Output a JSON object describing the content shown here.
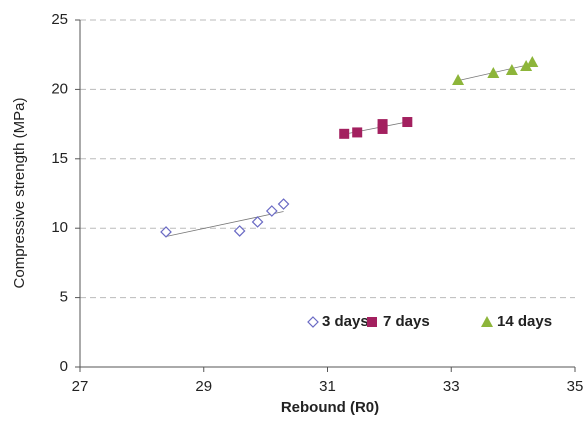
{
  "chart_data": {
    "type": "scatter",
    "x_label": "Rebound (R0)",
    "y_label": "Compressive strength (MPa)",
    "xlim": [
      27,
      35
    ],
    "xticks": [
      27,
      29,
      31,
      33,
      35
    ],
    "ylim": [
      0,
      25
    ],
    "yticks": [
      0,
      5,
      10,
      15,
      20,
      25
    ],
    "grid": true,
    "trendline": true,
    "legend": "bottom-right",
    "series": [
      {
        "name": "3 days",
        "color": "#6a6ac4",
        "marker": "diamond",
        "x": [
          28.39,
          29.58,
          29.87,
          30.1,
          30.29
        ],
        "values": [
          9.73,
          9.8,
          10.45,
          11.24,
          11.74
        ]
      },
      {
        "name": "7 days",
        "color": "#a3205f",
        "marker": "square",
        "x": [
          31.27,
          31.48,
          31.89,
          31.89,
          32.29
        ],
        "values": [
          16.8,
          16.9,
          17.15,
          17.5,
          17.65
        ]
      },
      {
        "name": "14 days",
        "color": "#8db53a",
        "marker": "triangle",
        "x": [
          33.11,
          33.68,
          33.98,
          34.21,
          34.31
        ],
        "values": [
          20.68,
          21.18,
          21.4,
          21.69,
          21.97
        ]
      }
    ]
  }
}
